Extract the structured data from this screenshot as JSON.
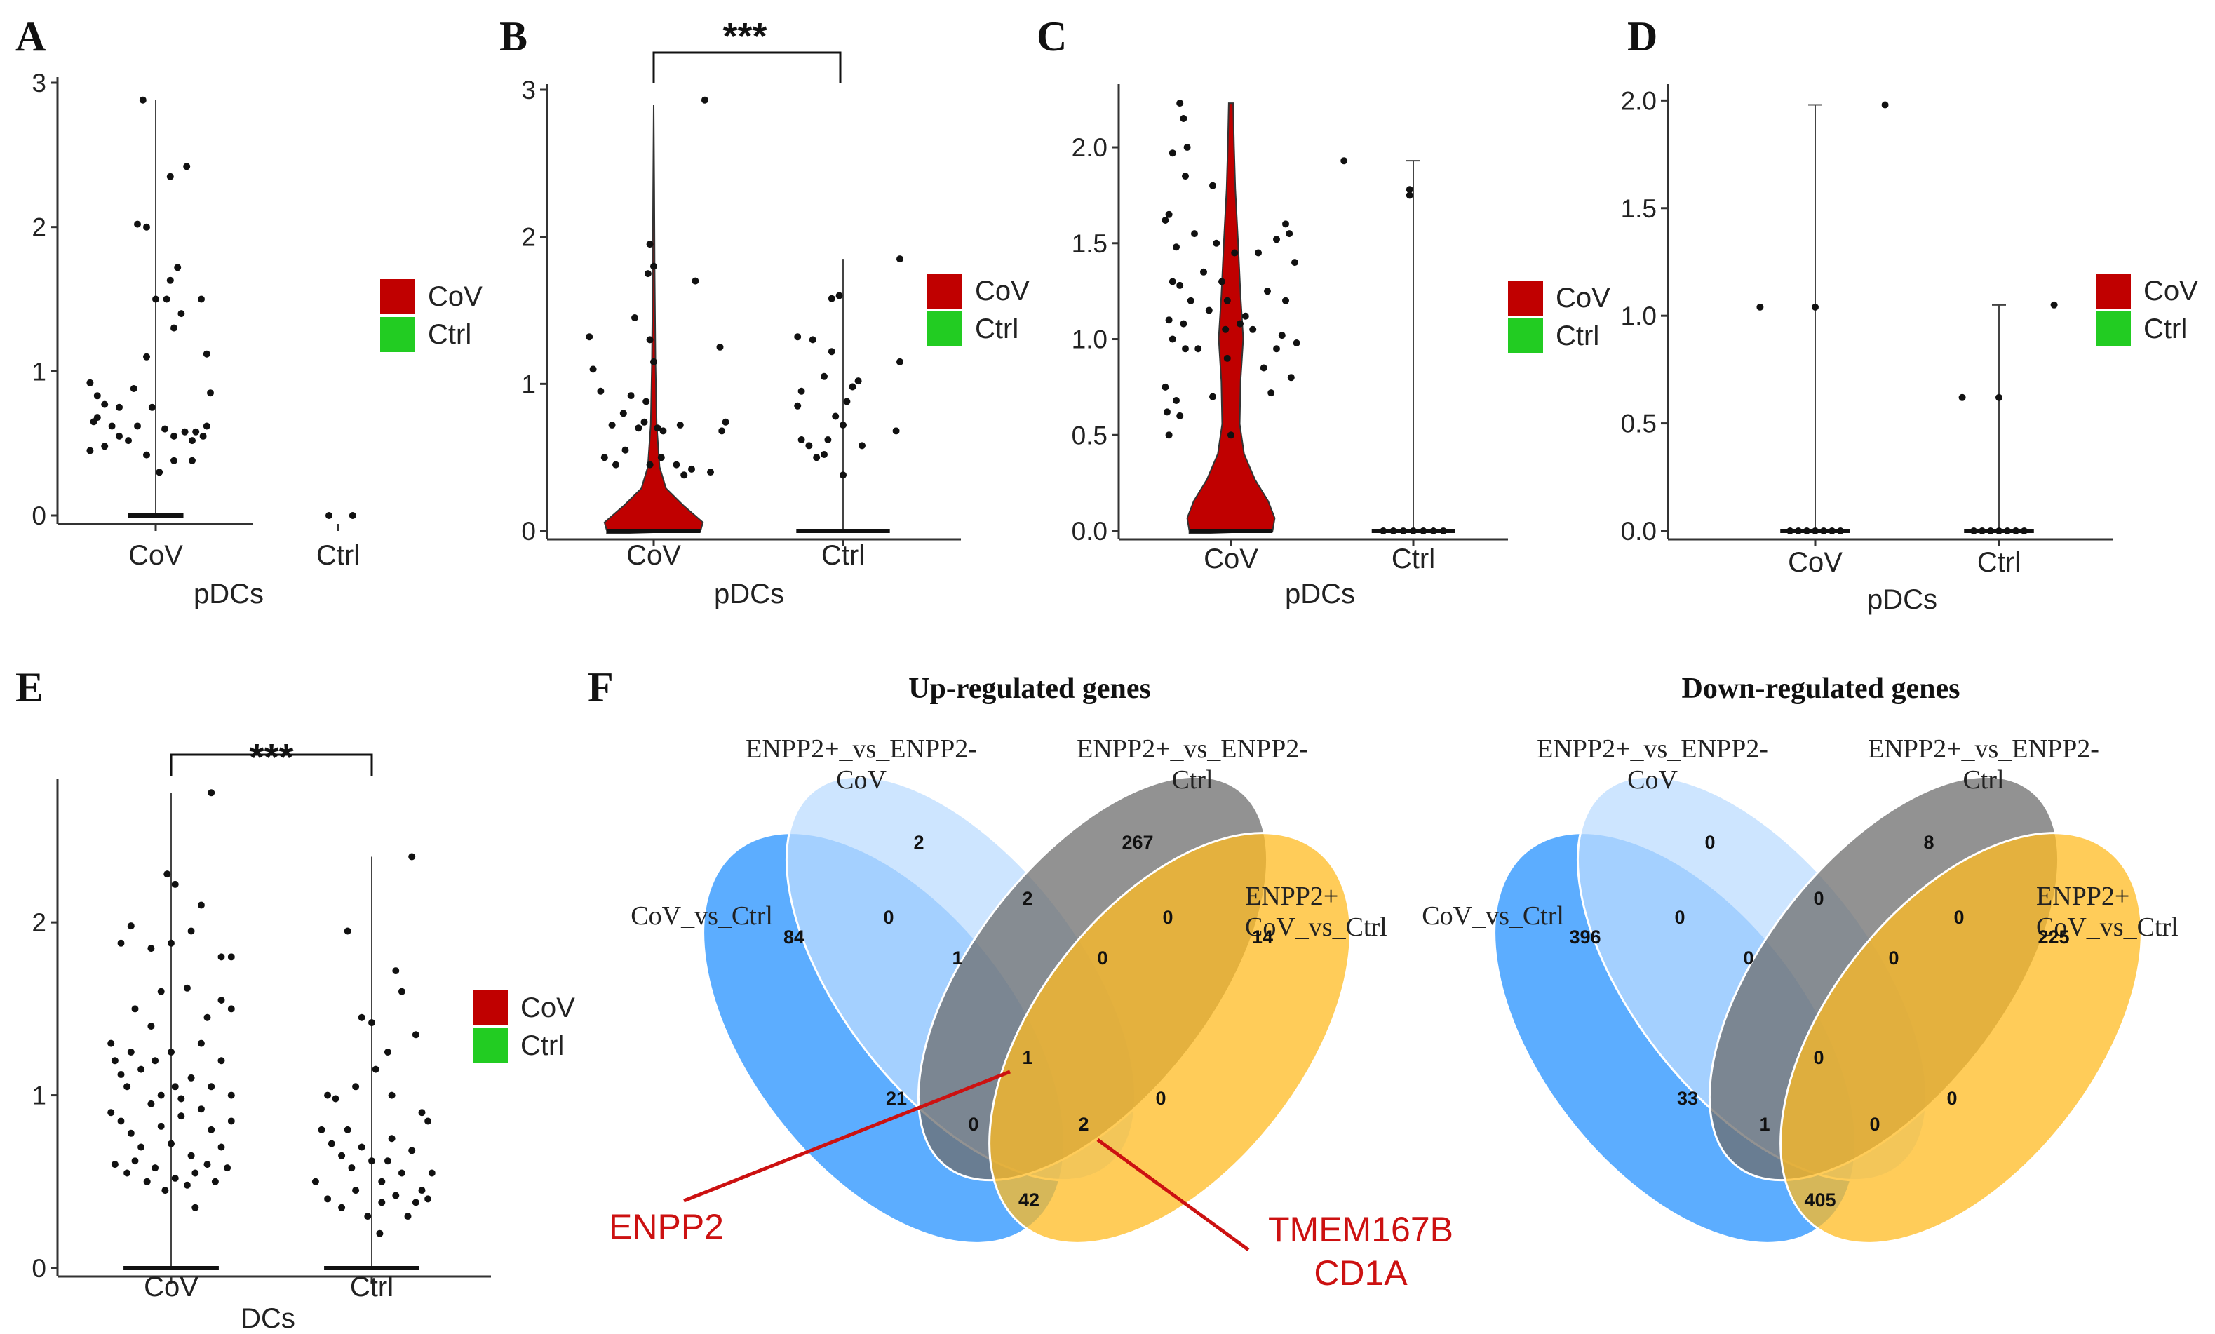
{
  "chart_data": [
    {
      "panel": "A",
      "type": "violin",
      "group": "pDCs",
      "xlabel": "pDCs",
      "categories": [
        "CoV",
        "Ctrl"
      ],
      "ylim": [
        0,
        3
      ],
      "yticks": [
        "0",
        "1",
        "2",
        "3"
      ],
      "legend": [
        {
          "name": "CoV",
          "color": "#c00000"
        },
        {
          "name": "Ctrl",
          "color": "#22cc22"
        }
      ],
      "violin_max": [
        2.88,
        0
      ],
      "points": [
        [
          [
            0.93,
            2.88
          ],
          [
            0.9,
            2.02
          ],
          [
            0.95,
            2.0
          ],
          [
            1.08,
            2.35
          ],
          [
            1.17,
            2.42
          ],
          [
            1.12,
            1.72
          ],
          [
            1.08,
            1.63
          ],
          [
            1.06,
            1.5
          ],
          [
            1.0,
            1.5
          ],
          [
            0.95,
            1.1
          ],
          [
            1.1,
            1.3
          ],
          [
            1.14,
            1.4
          ],
          [
            1.25,
            1.5
          ],
          [
            1.28,
            1.12
          ],
          [
            0.64,
            0.92
          ],
          [
            0.68,
            0.83
          ],
          [
            0.72,
            0.77
          ],
          [
            0.68,
            0.68
          ],
          [
            0.66,
            0.65
          ],
          [
            0.76,
            0.62
          ],
          [
            0.8,
            0.55
          ],
          [
            0.85,
            0.52
          ],
          [
            0.72,
            0.48
          ],
          [
            0.64,
            0.45
          ],
          [
            0.9,
            0.62
          ],
          [
            0.98,
            0.75
          ],
          [
            1.05,
            0.6
          ],
          [
            1.1,
            0.55
          ],
          [
            1.16,
            0.58
          ],
          [
            1.2,
            0.52
          ],
          [
            1.22,
            0.58
          ],
          [
            1.26,
            0.55
          ],
          [
            1.2,
            0.38
          ],
          [
            0.95,
            0.42
          ],
          [
            1.1,
            0.38
          ],
          [
            0.8,
            0.75
          ],
          [
            0.88,
            0.88
          ],
          [
            1.28,
            0.62
          ],
          [
            1.3,
            0.85
          ],
          [
            1.02,
            0.3
          ]
        ],
        [
          [
            1.95,
            0
          ],
          [
            2.08,
            0
          ]
        ]
      ]
    },
    {
      "panel": "B",
      "type": "violin",
      "group": "pDCs",
      "xlabel": "pDCs",
      "categories": [
        "CoV",
        "Ctrl"
      ],
      "ylim": [
        0,
        3
      ],
      "yticks": [
        "0",
        "1",
        "2",
        "3"
      ],
      "legend": [
        {
          "name": "CoV",
          "color": "#c00000"
        },
        {
          "name": "Ctrl",
          "color": "#22cc22"
        }
      ],
      "significance": "***",
      "violin_max": [
        2.9,
        1.85
      ],
      "points": [
        [
          [
            1.27,
            2.93
          ],
          [
            0.98,
            1.95
          ],
          [
            1.0,
            1.8
          ],
          [
            0.97,
            1.75
          ],
          [
            1.22,
            1.7
          ],
          [
            0.66,
            1.32
          ],
          [
            0.68,
            1.1
          ],
          [
            0.9,
            1.45
          ],
          [
            0.98,
            1.3
          ],
          [
            1.0,
            1.15
          ],
          [
            1.35,
            1.25
          ],
          [
            0.72,
            0.95
          ],
          [
            0.88,
            0.92
          ],
          [
            0.96,
            0.88
          ],
          [
            0.84,
            0.8
          ],
          [
            0.78,
            0.72
          ],
          [
            0.92,
            0.7
          ],
          [
            0.95,
            0.74
          ],
          [
            1.02,
            0.7
          ],
          [
            1.05,
            0.68
          ],
          [
            1.14,
            0.72
          ],
          [
            1.38,
            0.74
          ],
          [
            1.36,
            0.68
          ],
          [
            0.74,
            0.5
          ],
          [
            0.8,
            0.45
          ],
          [
            0.85,
            0.55
          ],
          [
            1.04,
            0.5
          ],
          [
            1.12,
            0.45
          ],
          [
            1.16,
            0.38
          ],
          [
            1.2,
            0.42
          ],
          [
            1.3,
            0.4
          ],
          [
            0.98,
            0.45
          ]
        ],
        [
          [
            2.3,
            1.85
          ],
          [
            1.98,
            1.6
          ],
          [
            1.94,
            1.58
          ],
          [
            1.76,
            1.32
          ],
          [
            1.84,
            1.3
          ],
          [
            1.94,
            1.22
          ],
          [
            1.9,
            1.05
          ],
          [
            1.78,
            0.95
          ],
          [
            1.76,
            0.85
          ],
          [
            1.96,
            0.78
          ],
          [
            1.92,
            0.62
          ],
          [
            1.82,
            0.58
          ],
          [
            1.9,
            0.52
          ],
          [
            2.08,
            1.02
          ],
          [
            2.05,
            0.98
          ],
          [
            2.02,
            0.88
          ],
          [
            2.0,
            0.72
          ],
          [
            2.0,
            0.38
          ],
          [
            1.78,
            0.62
          ],
          [
            1.86,
            0.5
          ],
          [
            2.1,
            0.58
          ],
          [
            2.28,
            0.68
          ],
          [
            2.3,
            1.15
          ]
        ]
      ]
    },
    {
      "panel": "C",
      "type": "violin",
      "group": "pDCs",
      "xlabel": "pDCs",
      "categories": [
        "CoV",
        "Ctrl"
      ],
      "ylim": [
        0,
        2.3
      ],
      "yticks": [
        "0.0",
        "0.5",
        "1.0",
        "1.5",
        "2.0"
      ],
      "legend": [
        {
          "name": "CoV",
          "color": "#c00000"
        },
        {
          "name": "Ctrl",
          "color": "#22cc22"
        }
      ],
      "violin_max": [
        2.23,
        1.93
      ],
      "points": [
        [
          [
            0.72,
            2.23
          ],
          [
            0.74,
            2.15
          ],
          [
            0.68,
            1.97
          ],
          [
            0.75,
            1.85
          ],
          [
            0.64,
            1.62
          ],
          [
            0.66,
            1.65
          ],
          [
            0.7,
            1.48
          ],
          [
            0.68,
            1.3
          ],
          [
            0.72,
            1.28
          ],
          [
            0.66,
            1.1
          ],
          [
            0.74,
            1.08
          ],
          [
            0.68,
            1.0
          ],
          [
            0.75,
            0.95
          ],
          [
            0.64,
            0.75
          ],
          [
            0.7,
            0.68
          ],
          [
            0.72,
            0.6
          ],
          [
            0.66,
            0.5
          ],
          [
            0.65,
            0.62
          ],
          [
            0.9,
            1.8
          ],
          [
            0.92,
            1.5
          ],
          [
            0.95,
            1.3
          ],
          [
            0.98,
            1.2
          ],
          [
            1.02,
            1.45
          ],
          [
            1.05,
            1.08
          ],
          [
            0.98,
            0.9
          ],
          [
            1.08,
            1.12
          ],
          [
            1.12,
            1.05
          ],
          [
            1.18,
            0.85
          ],
          [
            1.22,
            0.72
          ],
          [
            1.25,
            0.95
          ],
          [
            1.3,
            1.6
          ],
          [
            1.32,
            1.55
          ],
          [
            1.35,
            1.4
          ],
          [
            1.3,
            1.2
          ],
          [
            1.28,
            1.02
          ],
          [
            1.33,
            0.8
          ],
          [
            1.36,
            0.98
          ],
          [
            0.85,
            1.35
          ],
          [
            0.88,
            1.15
          ],
          [
            0.82,
            0.95
          ],
          [
            0.9,
            0.7
          ],
          [
            1.0,
            0.5
          ],
          [
            1.15,
            1.45
          ],
          [
            1.2,
            1.25
          ],
          [
            0.97,
            1.05
          ],
          [
            0.8,
            1.55
          ],
          [
            0.78,
            1.2
          ],
          [
            0.76,
            2.0
          ],
          [
            1.25,
            1.52
          ]
        ],
        [
          [
            1.62,
            1.93
          ],
          [
            1.98,
            1.75
          ],
          [
            1.98,
            1.78
          ]
        ]
      ]
    },
    {
      "panel": "D",
      "type": "violin",
      "group": "pDCs",
      "xlabel": "pDCs",
      "categories": [
        "CoV",
        "Ctrl"
      ],
      "ylim": [
        0,
        2.05
      ],
      "yticks": [
        "0.0",
        "0.5",
        "1.0",
        "1.5",
        "2.0"
      ],
      "legend": [
        {
          "name": "CoV",
          "color": "#c00000"
        },
        {
          "name": "Ctrl",
          "color": "#22cc22"
        }
      ],
      "violin_max": [
        1.98,
        1.05
      ],
      "points": [
        [
          [
            0.7,
            1.04
          ],
          [
            1.0,
            1.04
          ],
          [
            1.38,
            1.98
          ]
        ],
        [
          [
            1.8,
            0.62
          ],
          [
            2.0,
            0.62
          ],
          [
            2.3,
            1.05
          ]
        ]
      ]
    },
    {
      "panel": "E",
      "type": "violin",
      "group": "DCs",
      "xlabel": "DCs",
      "categories": [
        "CoV",
        "Ctrl"
      ],
      "ylim": [
        0,
        2.8
      ],
      "yticks": [
        "0",
        "1",
        "2"
      ],
      "legend": [
        {
          "name": "CoV",
          "color": "#c00000"
        },
        {
          "name": "Ctrl",
          "color": "#22cc22"
        }
      ],
      "significance": "***",
      "violin_max": [
        2.75,
        2.38
      ],
      "points": [
        [
          [
            1.2,
            2.75
          ],
          [
            0.98,
            2.28
          ],
          [
            1.02,
            2.22
          ],
          [
            1.15,
            2.1
          ],
          [
            0.8,
            1.98
          ],
          [
            0.9,
            1.85
          ],
          [
            1.0,
            1.88
          ],
          [
            1.1,
            1.95
          ],
          [
            1.25,
            1.8
          ],
          [
            0.75,
            1.88
          ],
          [
            1.3,
            1.8
          ],
          [
            0.7,
            1.3
          ],
          [
            0.72,
            1.2
          ],
          [
            0.75,
            1.12
          ],
          [
            0.8,
            1.25
          ],
          [
            0.85,
            1.15
          ],
          [
            0.9,
            1.4
          ],
          [
            0.95,
            1.0
          ],
          [
            1.0,
            1.25
          ],
          [
            1.05,
            0.98
          ],
          [
            1.1,
            1.1
          ],
          [
            1.15,
            1.3
          ],
          [
            1.2,
            1.05
          ],
          [
            1.25,
            1.2
          ],
          [
            1.3,
            1.0
          ],
          [
            0.7,
            0.9
          ],
          [
            0.75,
            0.85
          ],
          [
            0.8,
            0.78
          ],
          [
            0.85,
            0.7
          ],
          [
            0.9,
            0.95
          ],
          [
            0.95,
            0.82
          ],
          [
            1.0,
            0.72
          ],
          [
            1.05,
            0.88
          ],
          [
            1.1,
            0.65
          ],
          [
            1.15,
            0.92
          ],
          [
            1.2,
            0.8
          ],
          [
            1.25,
            0.7
          ],
          [
            1.3,
            0.85
          ],
          [
            0.72,
            0.6
          ],
          [
            0.78,
            0.55
          ],
          [
            0.82,
            0.62
          ],
          [
            0.88,
            0.5
          ],
          [
            0.92,
            0.58
          ],
          [
            0.97,
            0.45
          ],
          [
            1.02,
            0.52
          ],
          [
            1.08,
            0.48
          ],
          [
            1.12,
            0.55
          ],
          [
            1.18,
            0.6
          ],
          [
            1.22,
            0.5
          ],
          [
            1.28,
            0.58
          ],
          [
            1.3,
            1.5
          ],
          [
            1.25,
            1.55
          ],
          [
            1.18,
            1.45
          ],
          [
            0.82,
            1.5
          ],
          [
            1.08,
            1.62
          ],
          [
            0.95,
            1.6
          ],
          [
            1.12,
            0.35
          ],
          [
            0.92,
            1.2
          ],
          [
            1.02,
            1.05
          ],
          [
            0.78,
            1.05
          ]
        ],
        [
          [
            2.2,
            2.38
          ],
          [
            1.88,
            1.95
          ],
          [
            2.12,
            1.72
          ],
          [
            2.15,
            1.6
          ],
          [
            1.95,
            1.45
          ],
          [
            2.0,
            1.42
          ],
          [
            2.22,
            1.35
          ],
          [
            2.08,
            1.25
          ],
          [
            1.78,
            1.0
          ],
          [
            1.82,
            0.98
          ],
          [
            1.92,
            1.05
          ],
          [
            2.02,
            1.15
          ],
          [
            2.1,
            1.0
          ],
          [
            2.25,
            0.9
          ],
          [
            2.28,
            0.85
          ],
          [
            1.75,
            0.8
          ],
          [
            1.8,
            0.72
          ],
          [
            1.85,
            0.65
          ],
          [
            1.9,
            0.58
          ],
          [
            1.95,
            0.7
          ],
          [
            2.0,
            0.62
          ],
          [
            2.05,
            0.5
          ],
          [
            2.1,
            0.75
          ],
          [
            2.15,
            0.55
          ],
          [
            2.2,
            0.68
          ],
          [
            2.25,
            0.45
          ],
          [
            2.3,
            0.55
          ],
          [
            1.72,
            0.5
          ],
          [
            1.78,
            0.4
          ],
          [
            1.85,
            0.35
          ],
          [
            1.92,
            0.45
          ],
          [
            1.98,
            0.3
          ],
          [
            2.05,
            0.38
          ],
          [
            2.12,
            0.42
          ],
          [
            2.18,
            0.3
          ],
          [
            2.22,
            0.38
          ],
          [
            2.28,
            0.4
          ],
          [
            2.04,
            0.2
          ],
          [
            1.88,
            0.8
          ],
          [
            2.08,
            0.62
          ]
        ]
      ]
    },
    {
      "panel": "F",
      "type": "venn",
      "charts": [
        {
          "title": "Up-regulated genes",
          "sets": [
            "CoV_vs_Ctrl",
            "ENPP2+_vs_ENPP2-\nCoV",
            "ENPP2+_vs_ENPP2-\nCtrl",
            "ENPP2+\nCoV_vs_Ctrl"
          ],
          "regions": [
            "2",
            "267",
            "0",
            "2",
            "0",
            "84",
            "1",
            "0",
            "14",
            "1",
            "21",
            "0",
            "2",
            "0",
            "42"
          ],
          "callouts": [
            {
              "label": "ENPP2",
              "region": "1"
            },
            {
              "label": "TMEM167B\nCD1A",
              "region": "2"
            }
          ]
        },
        {
          "title": "Down-regulated genes",
          "sets": [
            "CoV_vs_Ctrl",
            "ENPP2+_vs_ENPP2-\nCoV",
            "ENPP2+_vs_ENPP2-\nCtrl",
            "ENPP2+\nCoV_vs_Ctrl"
          ],
          "regions": [
            "0",
            "8",
            "0",
            "0",
            "0",
            "396",
            "0",
            "0",
            "225",
            "0",
            "33",
            "1",
            "0",
            "0",
            "405"
          ]
        }
      ]
    }
  ]
}
